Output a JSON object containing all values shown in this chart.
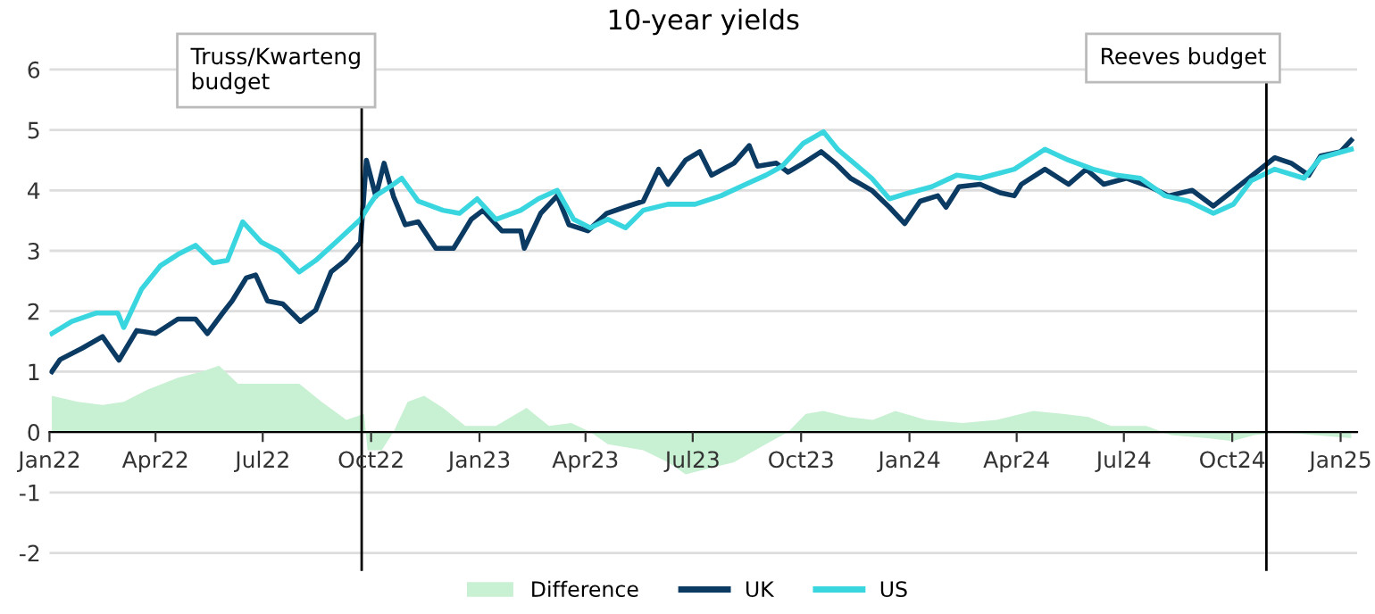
{
  "chart_data": {
    "type": "line",
    "title": "10-year yields",
    "xlim": [
      "2022-01-01",
      "2025-01-15"
    ],
    "xticks": [
      {
        "value": "2022-01-01",
        "label": "Jan22"
      },
      {
        "value": "2022-04-01",
        "label": "Apr22"
      },
      {
        "value": "2022-07-01",
        "label": "Jul22"
      },
      {
        "value": "2022-10-01",
        "label": "Oct22"
      },
      {
        "value": "2023-01-01",
        "label": "Jan23"
      },
      {
        "value": "2023-04-01",
        "label": "Apr23"
      },
      {
        "value": "2023-07-01",
        "label": "Jul23"
      },
      {
        "value": "2023-10-01",
        "label": "Oct23"
      },
      {
        "value": "2024-01-01",
        "label": "Jan24"
      },
      {
        "value": "2024-04-01",
        "label": "Apr24"
      },
      {
        "value": "2024-07-01",
        "label": "Jul24"
      },
      {
        "value": "2024-10-01",
        "label": "Oct24"
      },
      {
        "value": "2025-01-01",
        "label": "Jan25"
      }
    ],
    "ylim": [
      -2.3,
      6.5
    ],
    "yticks": [
      -2,
      -1,
      0,
      1,
      2,
      3,
      4,
      5,
      6
    ],
    "grid": "y",
    "legend": "bottom",
    "ref_lines": [
      {
        "axis": "x",
        "value": "2022-09-23",
        "label": "Truss/Kwarteng\nbudget",
        "color": "#000000"
      },
      {
        "axis": "x",
        "value": "2024-10-30",
        "label": "Reeves budget",
        "color": "#000000"
      }
    ],
    "series": [
      {
        "name": "Difference",
        "type": "area",
        "color": "#c8f0d2",
        "x": [
          "2022-01-03",
          "2022-01-25",
          "2022-02-15",
          "2022-03-05",
          "2022-03-25",
          "2022-04-20",
          "2022-05-10",
          "2022-05-25",
          "2022-06-10",
          "2022-06-20",
          "2022-07-15",
          "2022-08-01",
          "2022-08-20",
          "2022-09-10",
          "2022-09-25",
          "2022-09-28",
          "2022-10-10",
          "2022-10-20",
          "2022-11-01",
          "2022-11-15",
          "2022-12-01",
          "2022-12-20",
          "2023-01-15",
          "2023-02-10",
          "2023-03-01",
          "2023-03-20",
          "2023-04-05",
          "2023-04-20",
          "2023-05-20",
          "2023-06-10",
          "2023-06-25",
          "2023-07-15",
          "2023-08-05",
          "2023-09-01",
          "2023-09-20",
          "2023-10-05",
          "2023-10-20",
          "2023-11-10",
          "2023-12-01",
          "2023-12-20",
          "2024-01-15",
          "2024-02-15",
          "2024-03-15",
          "2024-04-15",
          "2024-05-10",
          "2024-06-01",
          "2024-06-20",
          "2024-07-20",
          "2024-08-10",
          "2024-09-10",
          "2024-10-01",
          "2024-10-20",
          "2024-11-10",
          "2024-12-10",
          "2025-01-10"
        ],
        "values": [
          0.6,
          0.5,
          0.45,
          0.5,
          0.7,
          0.9,
          1.0,
          1.1,
          0.8,
          0.8,
          0.8,
          0.8,
          0.5,
          0.2,
          0.3,
          -0.3,
          -0.3,
          0.0,
          0.5,
          0.6,
          0.4,
          0.1,
          0.1,
          0.4,
          0.1,
          0.15,
          0.0,
          -0.2,
          -0.3,
          -0.5,
          -0.7,
          -0.6,
          -0.5,
          -0.2,
          0.0,
          0.3,
          0.35,
          0.25,
          0.2,
          0.35,
          0.2,
          0.15,
          0.2,
          0.35,
          0.3,
          0.25,
          0.1,
          0.1,
          -0.05,
          -0.1,
          -0.15,
          -0.05,
          0.0,
          -0.05,
          -0.1
        ]
      },
      {
        "name": "UK",
        "color": "#0b3a63",
        "x": [
          "2022-01-03",
          "2022-01-10",
          "2022-01-29",
          "2022-02-15",
          "2022-03-01",
          "2022-03-16",
          "2022-04-01",
          "2022-04-20",
          "2022-05-05",
          "2022-05-15",
          "2022-05-28",
          "2022-06-05",
          "2022-06-17",
          "2022-06-25",
          "2022-07-05",
          "2022-07-18",
          "2022-08-02",
          "2022-08-15",
          "2022-08-28",
          "2022-09-09",
          "2022-09-22",
          "2022-09-27",
          "2022-10-05",
          "2022-10-12",
          "2022-10-20",
          "2022-10-30",
          "2022-11-10",
          "2022-11-25",
          "2022-12-10",
          "2022-12-25",
          "2023-01-04",
          "2023-01-20",
          "2023-02-05",
          "2023-02-08",
          "2023-02-22",
          "2023-03-08",
          "2023-03-18",
          "2023-04-03",
          "2023-04-19",
          "2023-05-04",
          "2023-05-20",
          "2023-06-02",
          "2023-06-10",
          "2023-06-25",
          "2023-07-07",
          "2023-07-17",
          "2023-08-05",
          "2023-08-18",
          "2023-08-25",
          "2023-09-10",
          "2023-09-20",
          "2023-10-03",
          "2023-10-18",
          "2023-10-30",
          "2023-11-12",
          "2023-11-30",
          "2023-12-15",
          "2023-12-28",
          "2024-01-10",
          "2024-01-25",
          "2024-02-01",
          "2024-02-12",
          "2024-03-01",
          "2024-03-18",
          "2024-03-30",
          "2024-04-05",
          "2024-04-25",
          "2024-05-15",
          "2024-05-30",
          "2024-06-14",
          "2024-07-03",
          "2024-07-23",
          "2024-08-08",
          "2024-08-28",
          "2024-09-15",
          "2024-10-02",
          "2024-10-15",
          "2024-11-06",
          "2024-11-20",
          "2024-12-05",
          "2024-12-15",
          "2025-01-01",
          "2025-01-10"
        ],
        "values": [
          1.0,
          1.2,
          1.39,
          1.58,
          1.19,
          1.68,
          1.63,
          1.87,
          1.87,
          1.63,
          1.97,
          2.17,
          2.55,
          2.6,
          2.17,
          2.12,
          1.83,
          2.02,
          2.65,
          2.84,
          3.14,
          4.5,
          3.9,
          4.45,
          3.9,
          3.43,
          3.48,
          3.04,
          3.04,
          3.52,
          3.67,
          3.33,
          3.33,
          3.04,
          3.62,
          3.91,
          3.43,
          3.33,
          3.62,
          3.72,
          3.82,
          4.35,
          4.1,
          4.5,
          4.64,
          4.25,
          4.45,
          4.74,
          4.4,
          4.45,
          4.3,
          4.45,
          4.64,
          4.45,
          4.2,
          4.0,
          3.72,
          3.45,
          3.82,
          3.91,
          3.72,
          4.06,
          4.1,
          3.96,
          3.91,
          4.1,
          4.35,
          4.1,
          4.35,
          4.1,
          4.2,
          4.06,
          3.91,
          4.0,
          3.74,
          4.0,
          4.2,
          4.54,
          4.45,
          4.25,
          4.57,
          4.64,
          4.83
        ]
      },
      {
        "name": "US",
        "color": "#3ad6e0",
        "x": [
          "2022-01-03",
          "2022-01-20",
          "2022-02-10",
          "2022-02-28",
          "2022-03-05",
          "2022-03-20",
          "2022-04-05",
          "2022-04-20",
          "2022-05-05",
          "2022-05-20",
          "2022-06-01",
          "2022-06-14",
          "2022-06-30",
          "2022-07-15",
          "2022-08-01",
          "2022-08-15",
          "2022-09-01",
          "2022-09-22",
          "2022-09-30",
          "2022-10-05",
          "2022-10-20",
          "2022-10-27",
          "2022-11-10",
          "2022-12-01",
          "2022-12-15",
          "2022-12-30",
          "2023-01-15",
          "2023-02-05",
          "2023-02-20",
          "2023-03-08",
          "2023-03-22",
          "2023-04-05",
          "2023-04-20",
          "2023-05-05",
          "2023-05-20",
          "2023-06-10",
          "2023-06-30",
          "2023-07-03",
          "2023-07-25",
          "2023-08-15",
          "2023-09-01",
          "2023-09-15",
          "2023-10-03",
          "2023-10-20",
          "2023-11-01",
          "2023-11-15",
          "2023-11-30",
          "2023-12-15",
          "2024-01-01",
          "2024-01-20",
          "2024-02-10",
          "2024-03-01",
          "2024-03-30",
          "2024-04-25",
          "2024-05-15",
          "2024-06-05",
          "2024-06-25",
          "2024-07-15",
          "2024-08-05",
          "2024-08-25",
          "2024-09-15",
          "2024-10-02",
          "2024-10-17",
          "2024-11-06",
          "2024-12-01",
          "2024-12-15",
          "2025-01-10"
        ],
        "values": [
          1.63,
          1.83,
          1.97,
          1.97,
          1.73,
          2.36,
          2.75,
          2.94,
          3.09,
          2.8,
          2.84,
          3.48,
          3.14,
          2.99,
          2.65,
          2.84,
          3.14,
          3.52,
          3.77,
          3.91,
          4.1,
          4.2,
          3.82,
          3.67,
          3.62,
          3.86,
          3.52,
          3.67,
          3.86,
          4.0,
          3.52,
          3.38,
          3.52,
          3.38,
          3.67,
          3.77,
          3.77,
          3.77,
          3.91,
          4.1,
          4.25,
          4.4,
          4.78,
          4.97,
          4.68,
          4.45,
          4.2,
          3.86,
          3.96,
          4.06,
          4.25,
          4.2,
          4.35,
          4.68,
          4.5,
          4.35,
          4.25,
          4.2,
          3.91,
          3.82,
          3.62,
          3.77,
          4.16,
          4.35,
          4.2,
          4.54,
          4.68
        ]
      }
    ]
  }
}
